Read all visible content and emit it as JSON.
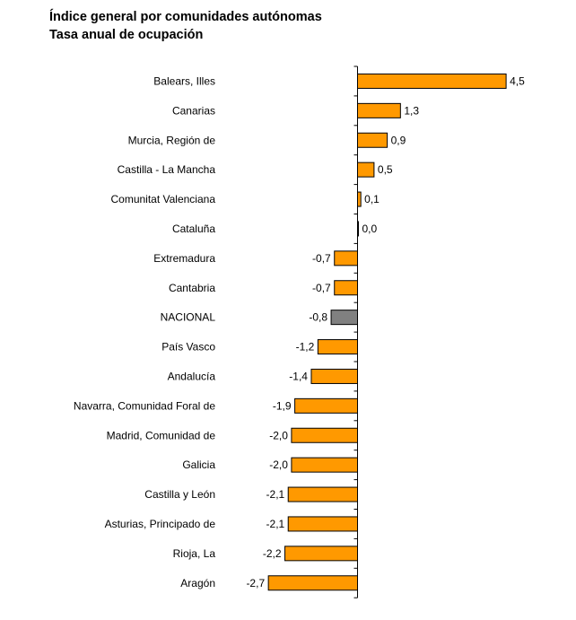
{
  "title": "Índice general por comunidades autónomas",
  "subtitle": "Tasa anual de ocupación",
  "colors": {
    "bar": "#ff9900",
    "highlight": "#808080",
    "axis": "#000000"
  },
  "chart_data": {
    "type": "bar",
    "orientation": "horizontal",
    "title": "Índice general por comunidades autónomas",
    "subtitle": "Tasa anual de ocupación",
    "xlabel": "",
    "ylabel": "",
    "grid": false,
    "xlim": [
      -2.7,
      4.5
    ],
    "highlight_category": "NACIONAL",
    "categories": [
      "Balears, Illes",
      "Canarias",
      "Murcia, Región de",
      "Castilla - La Mancha",
      "Comunitat Valenciana",
      "Cataluña",
      "Extremadura",
      "Cantabria",
      "NACIONAL",
      "País Vasco",
      "Andalucía",
      "Navarra, Comunidad Foral de",
      "Madrid, Comunidad de",
      "Galicia",
      "Castilla y León",
      "Asturias, Principado de",
      "Rioja, La",
      "Aragón"
    ],
    "values": [
      4.5,
      1.3,
      0.9,
      0.5,
      0.1,
      0.0,
      -0.7,
      -0.7,
      -0.8,
      -1.2,
      -1.4,
      -1.9,
      -2.0,
      -2.0,
      -2.1,
      -2.1,
      -2.2,
      -2.7
    ],
    "value_labels": [
      "4,5",
      "1,3",
      "0,9",
      "0,5",
      "0,1",
      "0,0",
      "-0,7",
      "-0,7",
      "-0,8",
      "-1,2",
      "-1,4",
      "-1,9",
      "-2,0",
      "-2,0",
      "-2,1",
      "-2,1",
      "-2,2",
      "-2,7"
    ]
  }
}
